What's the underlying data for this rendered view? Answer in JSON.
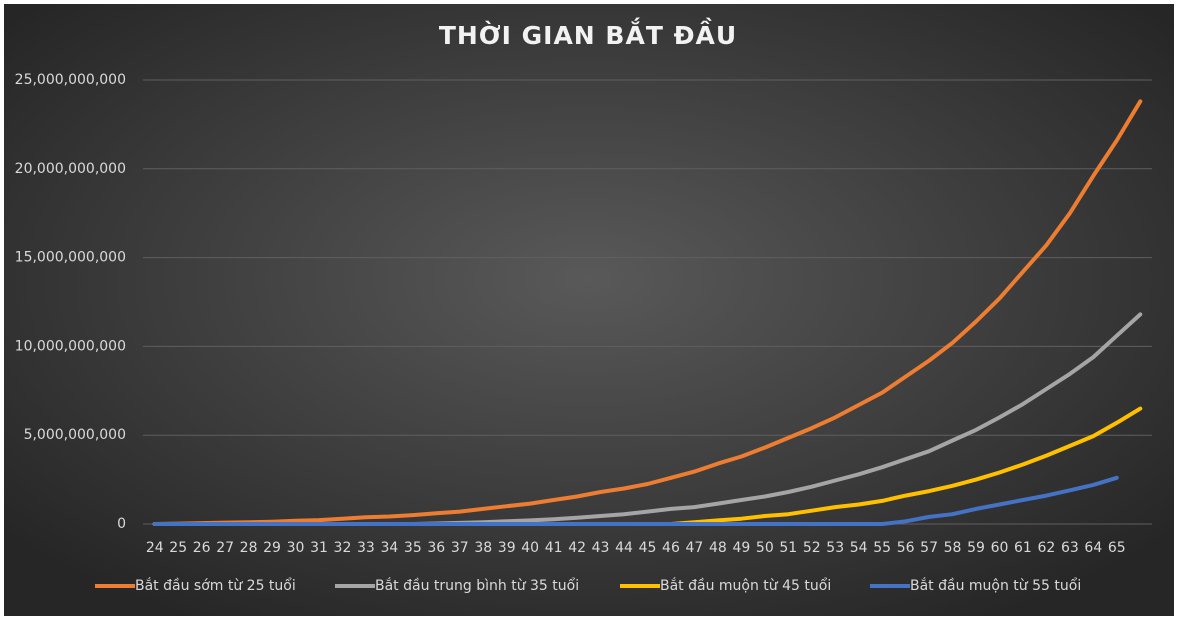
{
  "chart_data": {
    "type": "line",
    "title": "THỜI GIAN BẮT ĐẦU",
    "categories": [
      "24",
      "25",
      "26",
      "27",
      "28",
      "29",
      "30",
      "31",
      "32",
      "33",
      "34",
      "35",
      "36",
      "37",
      "38",
      "39",
      "40",
      "41",
      "42",
      "43",
      "44",
      "45",
      "46",
      "47",
      "48",
      "49",
      "50",
      "51",
      "52",
      "53",
      "54",
      "55",
      "56",
      "57",
      "58",
      "59",
      "60",
      "61",
      "62",
      "63",
      "64",
      "65",
      null
    ],
    "series": [
      {
        "name": "Bắt đầu sớm từ 25 tuổi",
        "color": "#ed7d31",
        "values": [
          0,
          20000000,
          50000000,
          80000000,
          100000000,
          130000000,
          180000000,
          220000000,
          300000000,
          380000000,
          420000000,
          500000000,
          600000000,
          700000000,
          850000000,
          1000000000,
          1150000000,
          1350000000,
          1550000000,
          1800000000,
          2000000000,
          2250000000,
          2600000000,
          2950000000,
          3400000000,
          3800000000,
          4300000000,
          4850000000,
          5400000000,
          6000000000,
          6700000000,
          7400000000,
          8300000000,
          9200000000,
          10200000000,
          11400000000,
          12700000000,
          14200000000,
          15700000000,
          17500000000,
          19600000000,
          21600000000,
          23800000000
        ]
      },
      {
        "name": "Bắt đầu  trung bình từ 35 tuổi",
        "color": "#a5a5a5",
        "values": [
          0,
          0,
          0,
          0,
          0,
          0,
          0,
          0,
          0,
          0,
          0,
          0,
          30000000,
          60000000,
          100000000,
          150000000,
          200000000,
          270000000,
          350000000,
          450000000,
          550000000,
          700000000,
          850000000,
          950000000,
          1150000000,
          1350000000,
          1550000000,
          1800000000,
          2100000000,
          2450000000,
          2800000000,
          3200000000,
          3650000000,
          4100000000,
          4700000000,
          5300000000,
          6000000000,
          6750000000,
          7600000000,
          8450000000,
          9400000000,
          10600000000,
          11800000000
        ]
      },
      {
        "name": "Bắt đầu muộn từ 45 tuổi",
        "color": "#ffc000",
        "values": [
          0,
          0,
          0,
          0,
          0,
          0,
          0,
          0,
          0,
          0,
          0,
          0,
          0,
          0,
          0,
          0,
          0,
          0,
          0,
          0,
          0,
          0,
          0,
          100000000,
          200000000,
          300000000,
          450000000,
          550000000,
          750000000,
          950000000,
          1100000000,
          1300000000,
          1600000000,
          1850000000,
          2150000000,
          2500000000,
          2900000000,
          3350000000,
          3850000000,
          4400000000,
          4950000000,
          5700000000,
          6500000000
        ]
      },
      {
        "name": "Bắt đầu muộn từ 55 tuổi",
        "color": "#4472c4",
        "values": [
          0,
          0,
          0,
          0,
          0,
          0,
          0,
          0,
          0,
          0,
          0,
          0,
          0,
          0,
          0,
          0,
          0,
          0,
          0,
          0,
          0,
          0,
          0,
          0,
          0,
          0,
          0,
          0,
          0,
          0,
          0,
          0,
          150000000,
          400000000,
          550000000,
          850000000,
          1100000000,
          1350000000,
          1600000000,
          1900000000,
          2200000000,
          2600000000,
          null
        ]
      }
    ],
    "ylim": [
      0,
      25000000000
    ],
    "yticks": [
      0,
      {
        "value": 5000000000,
        "label": "5,000,000,000"
      },
      {
        "value": 10000000000,
        "label": "10,000,000,000"
      },
      {
        "value": 15000000000,
        "label": "15,000,000,000"
      },
      {
        "value": 20000000000,
        "label": "20,000,000,000"
      },
      {
        "value": 25000000000,
        "label": "25,000,000,000"
      }
    ],
    "grid": true,
    "legend": "bottom"
  }
}
